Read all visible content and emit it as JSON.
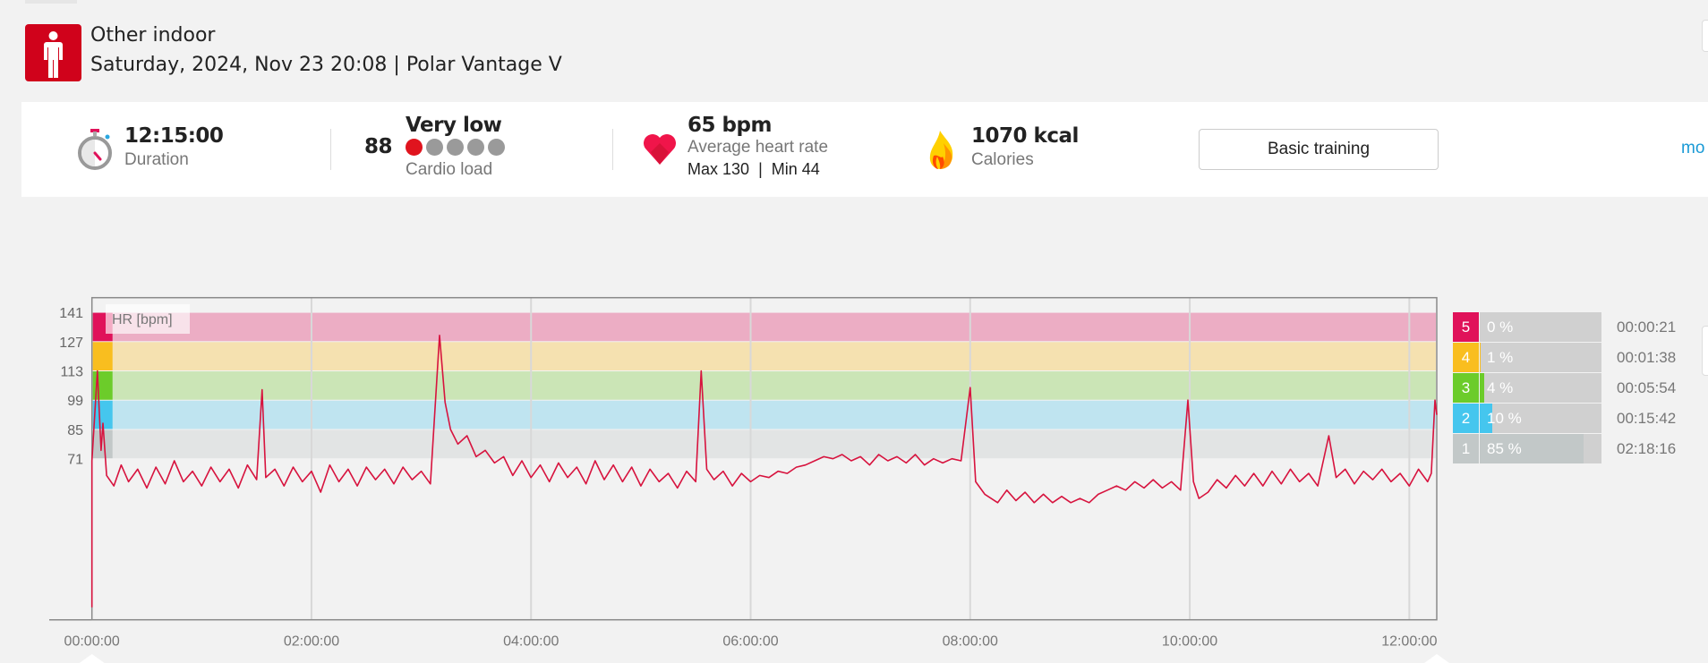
{
  "header": {
    "sport": "Other indoor",
    "subtitle": "Saturday, 2024, Nov 23 20:08 | Polar Vantage V",
    "sport_color": "#d0021b"
  },
  "stats": {
    "duration": {
      "value": "12:15:00",
      "label": "Duration",
      "icon": "stopwatch-icon"
    },
    "cardio": {
      "score": "88",
      "level": "Very low",
      "label": "Cardio load",
      "level_dots": 1,
      "dots_total": 5,
      "icon": "rating-dots"
    },
    "heart_rate": {
      "value": "65 bpm",
      "label": "Average heart rate",
      "max": "Max 130",
      "divider": "|",
      "min": "Min 44",
      "icon": "heart-icon"
    },
    "calories": {
      "value": "1070 kcal",
      "label": "Calories",
      "icon": "flame-icon"
    },
    "benefit_button": "Basic training",
    "more_link": "mo"
  },
  "chart_data": {
    "type": "line",
    "series_label": "HR [bpm]",
    "xlim_minutes": [
      0,
      735
    ],
    "ylim": [
      -6,
      148
    ],
    "x_ticks": [
      "00:00:00",
      "02:00:00",
      "04:00:00",
      "06:00:00",
      "08:00:00",
      "10:00:00",
      "12:00:00"
    ],
    "y_ticks": [
      "141",
      "127",
      "113",
      "99",
      "85",
      "71"
    ],
    "zone_bands": [
      {
        "zone": 5,
        "from": 127,
        "to": 141,
        "band": "#ecadc4",
        "strip": "#e0125a"
      },
      {
        "zone": 4,
        "from": 113,
        "to": 127,
        "band": "#f5e1b0",
        "strip": "#f9be1f"
      },
      {
        "zone": 3,
        "from": 99,
        "to": 113,
        "band": "#cbe5b6",
        "strip": "#6ccc2a"
      },
      {
        "zone": 2,
        "from": 85,
        "to": 99,
        "band": "#bfe4f0",
        "strip": "#45c6ee"
      },
      {
        "zone": 1,
        "from": 71,
        "to": 85,
        "band": "#e2e4e4",
        "strip": "#c2c8c8"
      }
    ],
    "line_color": "#d7133e",
    "grid": "vertical",
    "points": [
      [
        "0:00",
        0
      ],
      [
        "0:00",
        70
      ],
      [
        "0:03",
        113
      ],
      [
        "0:05",
        75
      ],
      [
        "0:06",
        88
      ],
      [
        "0:08",
        63
      ],
      [
        "0:12",
        58
      ],
      [
        "0:16",
        68
      ],
      [
        "0:20",
        60
      ],
      [
        "0:25",
        66
      ],
      [
        "0:30",
        57
      ],
      [
        "0:35",
        67
      ],
      [
        "0:40",
        59
      ],
      [
        "0:45",
        70
      ],
      [
        "0:50",
        60
      ],
      [
        "0:55",
        65
      ],
      [
        "1:00",
        58
      ],
      [
        "1:05",
        67
      ],
      [
        "1:10",
        60
      ],
      [
        "1:15",
        66
      ],
      [
        "1:20",
        57
      ],
      [
        "1:25",
        68
      ],
      [
        "1:30",
        61
      ],
      [
        "1:33",
        104
      ],
      [
        "1:35",
        62
      ],
      [
        "1:40",
        66
      ],
      [
        "1:45",
        58
      ],
      [
        "1:50",
        67
      ],
      [
        "1:55",
        60
      ],
      [
        "2:00",
        65
      ],
      [
        "2:05",
        55
      ],
      [
        "2:10",
        68
      ],
      [
        "2:15",
        60
      ],
      [
        "2:20",
        66
      ],
      [
        "2:25",
        58
      ],
      [
        "2:30",
        67
      ],
      [
        "2:35",
        61
      ],
      [
        "2:40",
        66
      ],
      [
        "2:45",
        59
      ],
      [
        "2:50",
        67
      ],
      [
        "2:55",
        61
      ],
      [
        "3:00",
        65
      ],
      [
        "3:05",
        59
      ],
      [
        "3:10",
        130
      ],
      [
        "3:13",
        98
      ],
      [
        "3:16",
        85
      ],
      [
        "3:20",
        78
      ],
      [
        "3:25",
        82
      ],
      [
        "3:30",
        72
      ],
      [
        "3:35",
        75
      ],
      [
        "3:40",
        69
      ],
      [
        "3:45",
        72
      ],
      [
        "3:50",
        63
      ],
      [
        "3:55",
        70
      ],
      [
        "4:00",
        62
      ],
      [
        "4:05",
        68
      ],
      [
        "4:10",
        60
      ],
      [
        "4:15",
        69
      ],
      [
        "4:20",
        62
      ],
      [
        "4:25",
        67
      ],
      [
        "4:30",
        59
      ],
      [
        "4:35",
        70
      ],
      [
        "4:40",
        61
      ],
      [
        "4:45",
        68
      ],
      [
        "4:50",
        60
      ],
      [
        "4:55",
        67
      ],
      [
        "5:00",
        58
      ],
      [
        "5:05",
        66
      ],
      [
        "5:10",
        60
      ],
      [
        "5:15",
        64
      ],
      [
        "5:20",
        57
      ],
      [
        "5:25",
        65
      ],
      [
        "5:30",
        60
      ],
      [
        "5:33",
        113
      ],
      [
        "5:36",
        66
      ],
      [
        "5:40",
        61
      ],
      [
        "5:45",
        65
      ],
      [
        "5:50",
        58
      ],
      [
        "5:55",
        64
      ],
      [
        "6:00",
        60
      ],
      [
        "6:05",
        63
      ],
      [
        "6:10",
        62
      ],
      [
        "6:15",
        65
      ],
      [
        "6:20",
        64
      ],
      [
        "6:25",
        67
      ],
      [
        "6:30",
        68
      ],
      [
        "6:35",
        70
      ],
      [
        "6:40",
        72
      ],
      [
        "6:45",
        71
      ],
      [
        "6:50",
        73
      ],
      [
        "6:55",
        70
      ],
      [
        "7:00",
        72
      ],
      [
        "7:05",
        68
      ],
      [
        "7:10",
        73
      ],
      [
        "7:15",
        70
      ],
      [
        "7:20",
        72
      ],
      [
        "7:25",
        69
      ],
      [
        "7:30",
        73
      ],
      [
        "7:35",
        68
      ],
      [
        "7:40",
        71
      ],
      [
        "7:45",
        69
      ],
      [
        "7:50",
        71
      ],
      [
        "7:55",
        70
      ],
      [
        "8:00",
        105
      ],
      [
        "8:03",
        60
      ],
      [
        "8:08",
        54
      ],
      [
        "8:15",
        50
      ],
      [
        "8:20",
        56
      ],
      [
        "8:25",
        51
      ],
      [
        "8:30",
        55
      ],
      [
        "8:35",
        50
      ],
      [
        "8:40",
        54
      ],
      [
        "8:45",
        50
      ],
      [
        "8:50",
        53
      ],
      [
        "8:55",
        50
      ],
      [
        "9:00",
        52
      ],
      [
        "9:05",
        50
      ],
      [
        "9:10",
        54
      ],
      [
        "9:15",
        56
      ],
      [
        "9:20",
        58
      ],
      [
        "9:25",
        56
      ],
      [
        "9:30",
        60
      ],
      [
        "9:35",
        57
      ],
      [
        "9:40",
        61
      ],
      [
        "9:45",
        57
      ],
      [
        "9:50",
        60
      ],
      [
        "9:55",
        56
      ],
      [
        "9:59",
        99
      ],
      [
        "10:02",
        60
      ],
      [
        "10:05",
        52
      ],
      [
        "10:10",
        55
      ],
      [
        "10:15",
        61
      ],
      [
        "10:20",
        57
      ],
      [
        "10:25",
        63
      ],
      [
        "10:30",
        58
      ],
      [
        "10:35",
        64
      ],
      [
        "10:40",
        58
      ],
      [
        "10:45",
        65
      ],
      [
        "10:50",
        59
      ],
      [
        "10:55",
        66
      ],
      [
        "11:00",
        60
      ],
      [
        "11:05",
        64
      ],
      [
        "11:10",
        58
      ],
      [
        "11:16",
        82
      ],
      [
        "11:20",
        62
      ],
      [
        "11:25",
        66
      ],
      [
        "11:30",
        59
      ],
      [
        "11:35",
        65
      ],
      [
        "11:40",
        61
      ],
      [
        "11:45",
        66
      ],
      [
        "11:50",
        60
      ],
      [
        "11:55",
        64
      ],
      [
        "12:00",
        58
      ],
      [
        "12:05",
        66
      ],
      [
        "12:10",
        60
      ],
      [
        "12:12",
        64
      ],
      [
        "12:14",
        99
      ],
      [
        "12:15",
        92
      ]
    ]
  },
  "zones": [
    {
      "number": "5",
      "percent": "0 %",
      "fraction": 0.0,
      "time": "00:00:21",
      "color": "#e0125a"
    },
    {
      "number": "4",
      "percent": "1 %",
      "fraction": 0.01,
      "time": "00:01:38",
      "color": "#f9be1f"
    },
    {
      "number": "3",
      "percent": "4 %",
      "fraction": 0.04,
      "time": "00:05:54",
      "color": "#6ccc2a"
    },
    {
      "number": "2",
      "percent": "10 %",
      "fraction": 0.1,
      "time": "00:15:42",
      "color": "#45c6ee"
    },
    {
      "number": "1",
      "percent": "85 %",
      "fraction": 0.85,
      "time": "02:18:16",
      "color": "#c2c8c8"
    }
  ]
}
